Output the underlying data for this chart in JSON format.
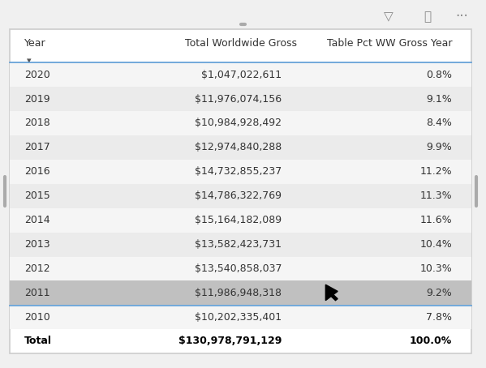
{
  "headers": [
    "Year",
    "Total Worldwide Gross",
    "Table Pct WW Gross Year"
  ],
  "rows": [
    [
      "2020",
      "$1,047,022,611",
      "0.8%"
    ],
    [
      "2019",
      "$11,976,074,156",
      "9.1%"
    ],
    [
      "2018",
      "$10,984,928,492",
      "8.4%"
    ],
    [
      "2017",
      "$12,974,840,288",
      "9.9%"
    ],
    [
      "2016",
      "$14,732,855,237",
      "11.2%"
    ],
    [
      "2015",
      "$14,786,322,769",
      "11.3%"
    ],
    [
      "2014",
      "$15,164,182,089",
      "11.6%"
    ],
    [
      "2013",
      "$13,582,423,731",
      "10.4%"
    ],
    [
      "2012",
      "$13,540,858,037",
      "10.3%"
    ],
    [
      "2011",
      "$11,986,948,318",
      "9.2%"
    ],
    [
      "2010",
      "$10,202,335,401",
      "7.8%"
    ]
  ],
  "total_row": [
    "Total",
    "$130,978,791,129",
    "100.0%"
  ],
  "bg_color": "#f5f5f5",
  "white_color": "#ffffff",
  "header_text_color": "#333333",
  "row_text_color": "#333333",
  "total_text_color": "#000000",
  "border_color": "#5b9bd5",
  "highlight_row_idx": 9,
  "highlight_color": "#c0c0c0",
  "alt_row_color": "#ebebeb",
  "normal_row_color": "#f5f5f5"
}
